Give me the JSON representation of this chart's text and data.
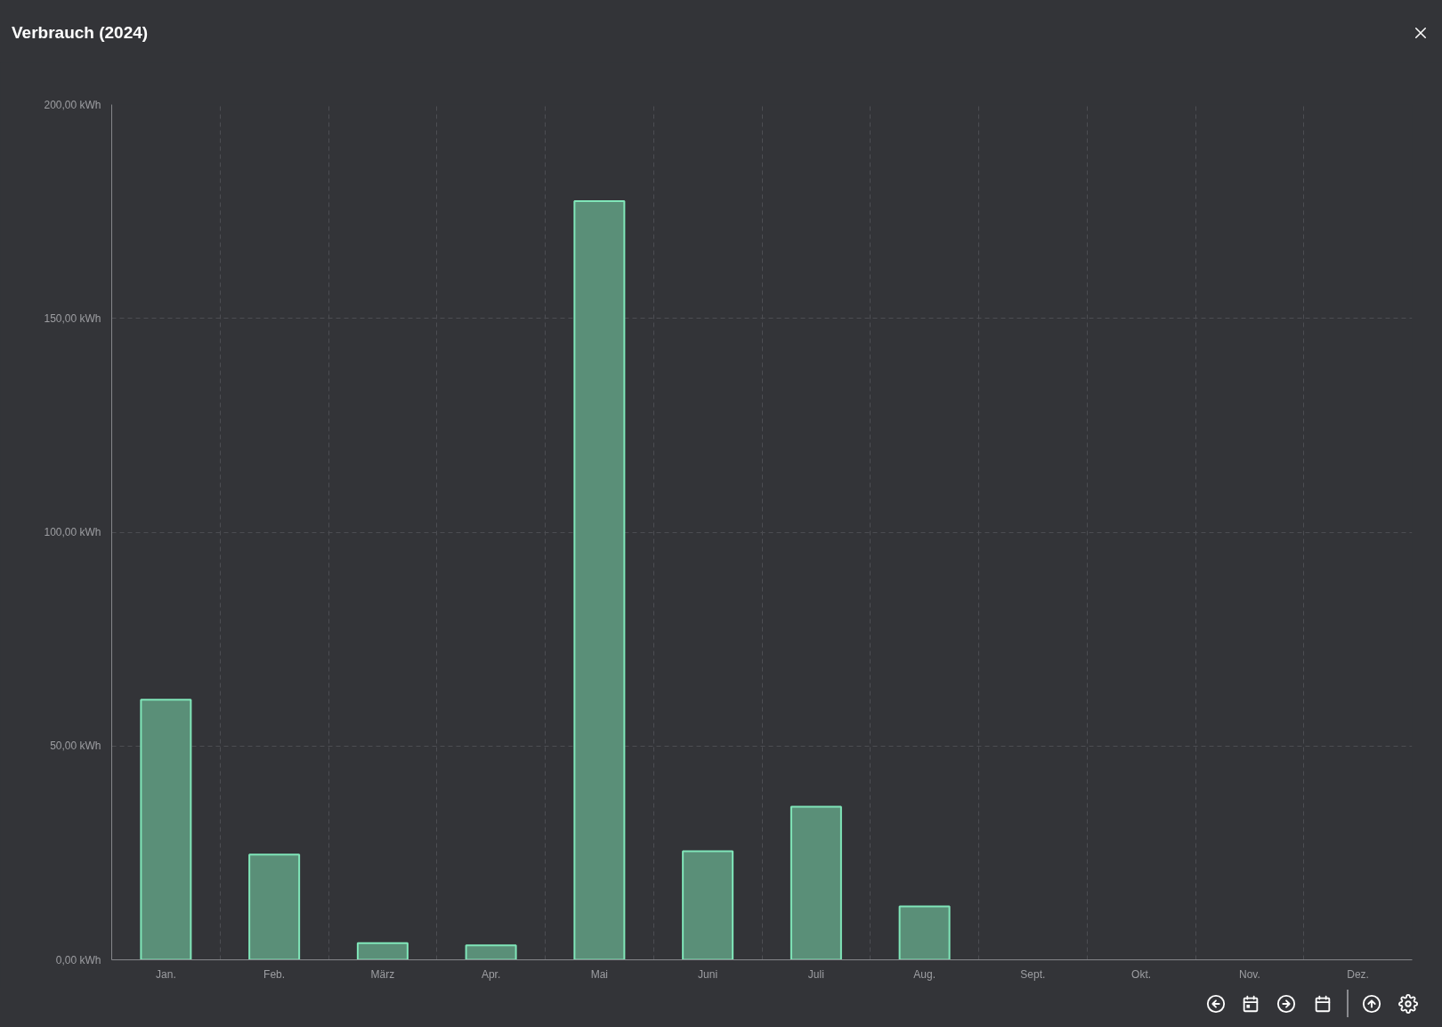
{
  "chart_data": {
    "type": "bar",
    "title": "Verbrauch (2024)",
    "categories": [
      "Jan.",
      "Feb.",
      "März",
      "Apr.",
      "Mai",
      "Juni",
      "Juli",
      "Aug.",
      "Sept.",
      "Okt.",
      "Nov.",
      "Dez."
    ],
    "values": [
      60.8,
      24.6,
      3.9,
      3.4,
      177.4,
      25.4,
      35.8,
      12.5,
      null,
      null,
      null,
      null
    ],
    "color": "#5a8f78",
    "ylim": [
      0,
      200
    ],
    "yticks": [
      {
        "value": 0,
        "label": "0,00 kWh"
      },
      {
        "value": 50,
        "label": "50,00 kWh"
      },
      {
        "value": 100,
        "label": "100,00 kWh"
      },
      {
        "value": 150,
        "label": "150,00 kWh"
      },
      {
        "value": 200,
        "label": "200,00 kWh"
      }
    ],
    "grid": true
  }
}
